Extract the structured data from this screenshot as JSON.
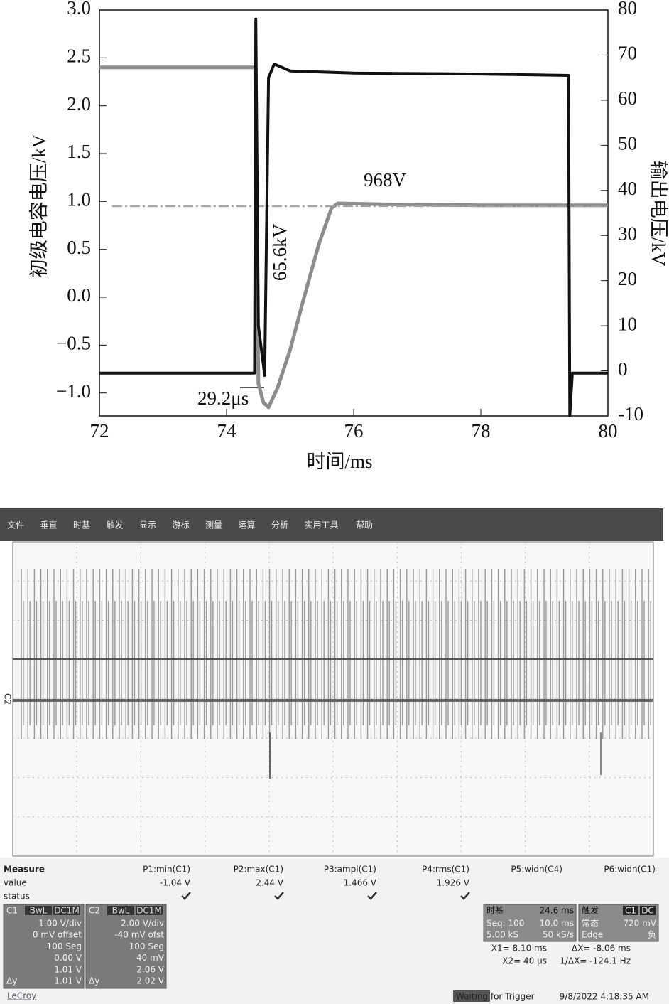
{
  "chart_data": {
    "type": "line",
    "y_label": "初级电容电压/kV",
    "y2_label": "输出电压/kV",
    "x_label": "时间/ms",
    "xlim": [
      72,
      80
    ],
    "xticks": [
      72,
      74,
      76,
      78,
      80
    ],
    "ylim": [
      -1.24,
      3.0
    ],
    "yticks": [
      {
        "value": 3.0,
        "label": "3.0"
      },
      {
        "value": 2.5,
        "label": "2.5"
      },
      {
        "value": 2.0,
        "label": "2.0"
      },
      {
        "value": 1.5,
        "label": "1.5"
      },
      {
        "value": 1.0,
        "label": "1.0"
      },
      0.5,
      {
        "value": 0.0,
        "label": "0.0"
      },
      {
        "value": -0.5,
        "label": "−0.5"
      },
      {
        "value": -1.0,
        "label": "−1.0"
      }
    ],
    "y2lim": [
      -10,
      80
    ],
    "y2ticks": [
      80,
      70,
      60,
      50,
      40,
      30,
      20,
      10,
      0,
      -10
    ],
    "series": [
      {
        "color": "#8c8c8c",
        "width": 5,
        "x": [
          72,
          74.45,
          74.5,
          74.58,
          74.66,
          74.8,
          75.0,
          75.2,
          75.45,
          75.65,
          75.75,
          76.5,
          78,
          80
        ],
        "values": [
          2.4,
          2.4,
          -0.9,
          -1.1,
          -1.15,
          -0.95,
          -0.55,
          -0.05,
          0.55,
          0.93,
          0.98,
          0.97,
          0.96,
          0.96
        ]
      },
      {
        "color": "#a0a0a0",
        "dash": "dashdot",
        "width": 2,
        "x": [
          72.2,
          80
        ],
        "values": [
          0.95,
          0.95
        ]
      },
      {
        "color": "#111111",
        "width": 4,
        "axis": "y2",
        "x": [
          72,
          74.44,
          74.46,
          74.5,
          74.6,
          74.66,
          74.75,
          75,
          76,
          78,
          79.38,
          79.4,
          79.44,
          80
        ],
        "values": [
          -0.5,
          -0.5,
          78,
          10,
          -1,
          65,
          68,
          66.5,
          66,
          65.8,
          65.5,
          -10,
          -0.5,
          -0.5
        ]
      }
    ],
    "annotations": [
      "968V",
      "65.6kV",
      "29.2μs"
    ]
  },
  "scope": {
    "menu": [
      "文件",
      "垂直",
      "时基",
      "触发",
      "显示",
      "游标",
      "测量",
      "运算",
      "分析",
      "实用工具",
      "帮助"
    ],
    "side_label": "C2",
    "measure": {
      "title": "Measure",
      "row_labels": [
        "value",
        "status"
      ],
      "columns": [
        {
          "name": "P1:min(C1)",
          "value": "-1.04 V"
        },
        {
          "name": "P2:max(C1)",
          "value": "2.44 V"
        },
        {
          "name": "P3:ampl(C1)",
          "value": "1.466 V"
        },
        {
          "name": "P4:rms(C1)",
          "value": "1.926 V"
        },
        {
          "name": "P5:widn(C4)"
        },
        {
          "name": "P6:widn(C1)"
        }
      ]
    },
    "channels": [
      {
        "id": "C1",
        "tags": [
          "BwL",
          "DC1M"
        ],
        "lines": [
          "1.00 V/div",
          "0 mV offset",
          "100 Seg",
          "0.00 V",
          "1.01 V",
          "1.01 V"
        ],
        "delta": "Δy"
      },
      {
        "id": "C2",
        "tags": [
          "BwL",
          "DC1M"
        ],
        "lines": [
          "2.00 V/div",
          "-40 mV ofst",
          "100 Seg",
          "40 mV",
          "2.06 V",
          "2.02 V"
        ],
        "delta": "Δy"
      }
    ],
    "timebase": {
      "title": "时基",
      "value": "24.6 ms",
      "rows": [
        [
          "Seq: 100",
          "10.0 ms"
        ],
        [
          "5.00 kS",
          "50 kS/s"
        ]
      ]
    },
    "trigger": {
      "title": "触发",
      "tags": [
        "C1",
        "DC"
      ],
      "rows": [
        [
          "常态",
          "720 mV"
        ],
        [
          "Edge",
          "负"
        ]
      ]
    },
    "cursors": [
      [
        "X1= 8.10 ms",
        "ΔX= -8.06 ms"
      ],
      [
        "X2= 40 μs",
        "1/ΔX= -124.1 Hz"
      ]
    ],
    "footer": {
      "brand": "LeCroy",
      "status": "Waiting for Trigger",
      "datetime": "9/8/2022 4:18:35 AM"
    }
  }
}
